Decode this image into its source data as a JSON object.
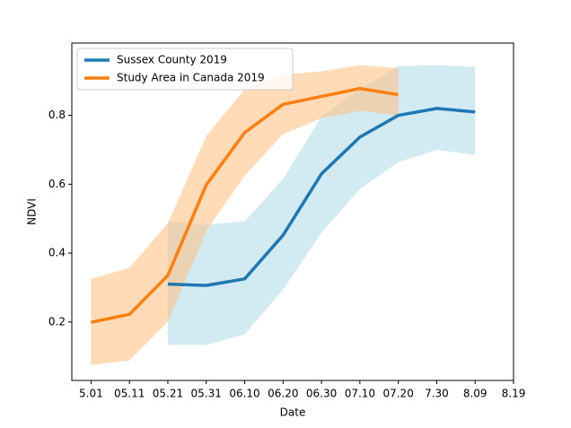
{
  "chart_data": {
    "type": "line",
    "xlabel": "Date",
    "ylabel": "NDVI",
    "categories": [
      "5.01",
      "05.11",
      "05.21",
      "05.31",
      "06.10",
      "06.20",
      "06.30",
      "07.10",
      "07.20",
      "7.30",
      "8.09",
      "8.19"
    ],
    "series": [
      {
        "name": "Sussex County 2019",
        "color": "#1f77b4",
        "band_color": "#add8e6",
        "values": [
          null,
          null,
          0.31,
          0.306,
          0.325,
          0.452,
          0.63,
          0.737,
          0.8,
          0.82,
          0.81,
          null
        ],
        "band_lower": [
          null,
          null,
          0.133,
          0.133,
          0.164,
          0.294,
          0.459,
          0.586,
          0.664,
          0.7,
          0.685,
          null
        ],
        "band_upper": [
          null,
          null,
          0.492,
          0.482,
          0.492,
          0.615,
          0.797,
          0.876,
          0.943,
          0.946,
          0.941,
          null
        ]
      },
      {
        "name": "Study Area in Canada 2019",
        "color": "#ff7f0e",
        "band_color": "#ffbe7d",
        "values": [
          0.199,
          0.222,
          0.335,
          0.598,
          0.75,
          0.832,
          0.855,
          0.878,
          0.86,
          null,
          null,
          null
        ],
        "band_lower": [
          0.075,
          0.088,
          0.2,
          0.464,
          0.625,
          0.745,
          0.792,
          0.813,
          0.8,
          null,
          null,
          null
        ],
        "band_upper": [
          0.325,
          0.357,
          0.487,
          0.74,
          0.876,
          0.918,
          0.928,
          0.946,
          0.936,
          null,
          null,
          null
        ]
      }
    ],
    "ylim": [
      0.03,
      1.01
    ],
    "yticks": [
      0.2,
      0.4,
      0.6,
      0.8
    ],
    "legend": "upper left"
  }
}
